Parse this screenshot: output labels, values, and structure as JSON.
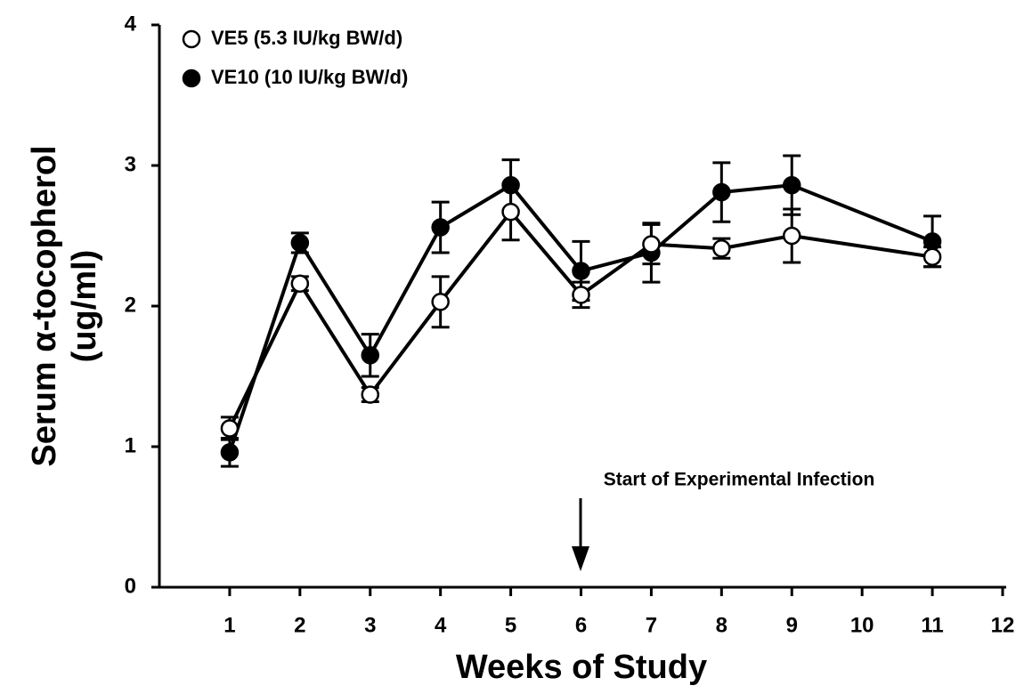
{
  "chart_data": {
    "type": "line",
    "x_label": "Weeks of Study",
    "y_label": "Serum α-tocopherol",
    "y_label_unit": "(ug/ml)",
    "annotation": "Start of Experimental Infection",
    "x": [
      1,
      2,
      3,
      4,
      5,
      6,
      7,
      8,
      9,
      11
    ],
    "series": [
      {
        "name": "VE5 (5.3 IU/kg BW/d)",
        "color": "#000000",
        "marker_fill": "#ffffff",
        "values": [
          1.13,
          2.16,
          1.37,
          2.03,
          2.67,
          2.08,
          2.44,
          2.41,
          2.5,
          2.35
        ],
        "errors": [
          0.08,
          0.05,
          0.05,
          0.18,
          0.2,
          0.09,
          0.14,
          0.07,
          0.19,
          0.07
        ]
      },
      {
        "name": "VE10 (10 IU/kg BW/d)",
        "color": "#000000",
        "marker_fill": "#000000",
        "values": [
          0.96,
          2.45,
          1.65,
          2.56,
          2.86,
          2.25,
          2.38,
          2.81,
          2.86,
          2.46
        ],
        "errors": [
          0.1,
          0.07,
          0.15,
          0.18,
          0.18,
          0.21,
          0.21,
          0.21,
          0.21,
          0.18
        ]
      }
    ],
    "xlim": [
      0,
      12
    ],
    "xticks": [
      1,
      2,
      3,
      4,
      5,
      6,
      7,
      8,
      9,
      10,
      11,
      12
    ],
    "ylim": [
      0,
      4
    ],
    "yticks": [
      0,
      1,
      2,
      3,
      4
    ],
    "legend": "upper left",
    "grid": false
  }
}
